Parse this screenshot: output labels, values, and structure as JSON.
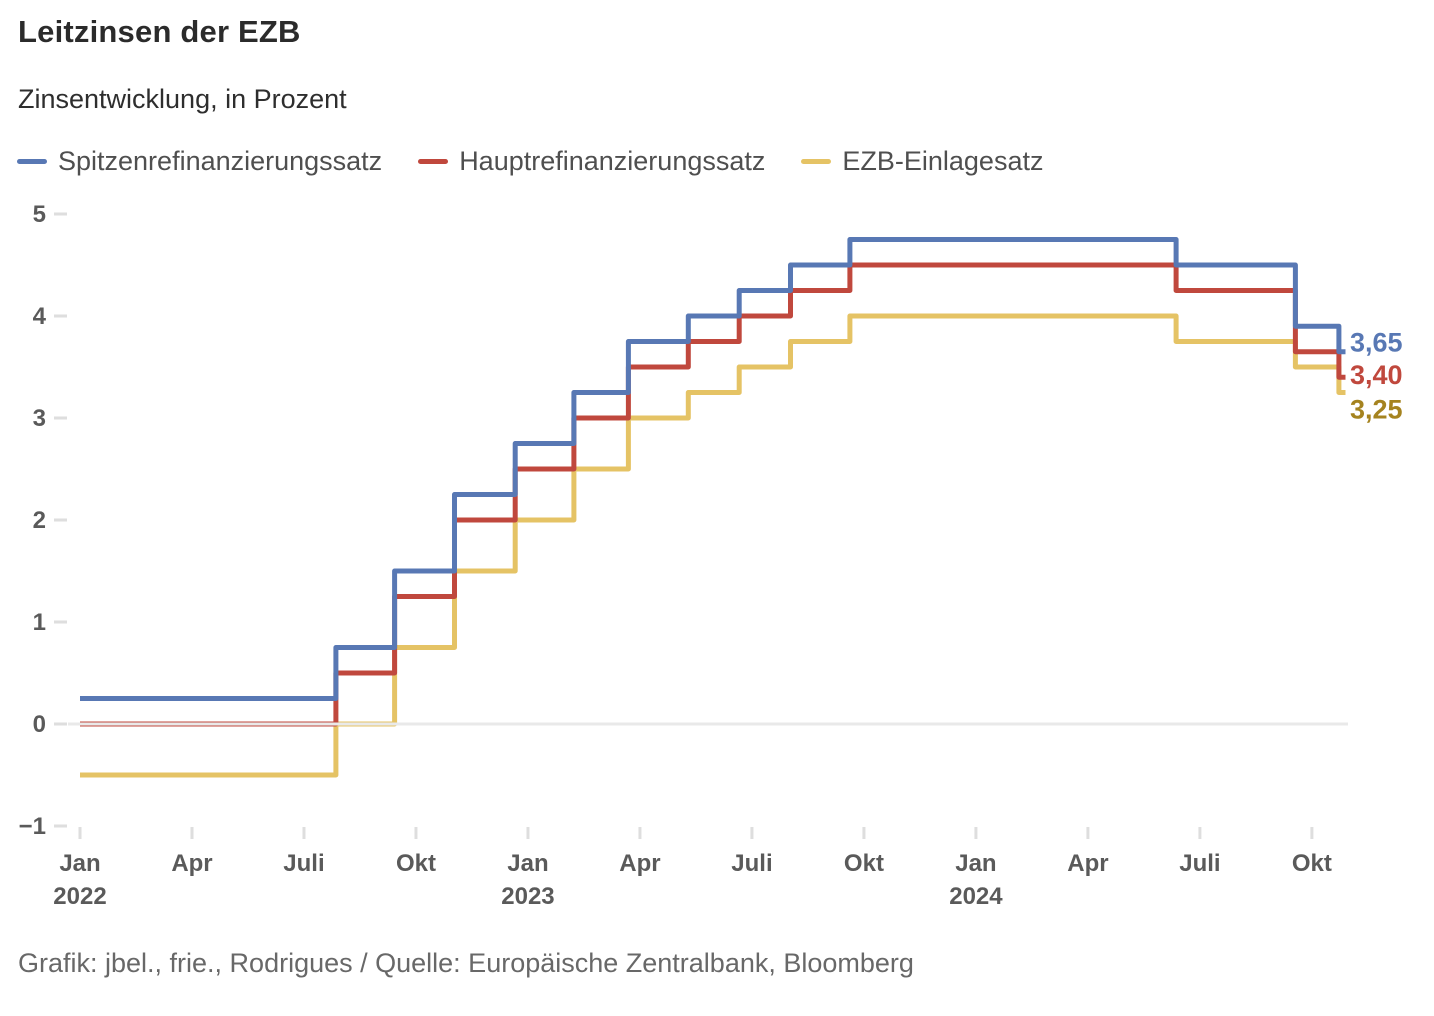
{
  "header": {
    "title": "Leitzinsen der EZB",
    "subtitle": "Zinsentwicklung, in Prozent"
  },
  "legend": {
    "items": [
      {
        "id": "spitzen",
        "label": "Spitzenrefinanzierungssatz",
        "color": "#5878b4"
      },
      {
        "id": "haupt",
        "label": "Hauptrefinanzierungssatz",
        "color": "#c0483d"
      },
      {
        "id": "einlage",
        "label": "EZB-Einlagesatz",
        "color": "#e5c365"
      }
    ]
  },
  "chart_data": {
    "type": "line",
    "subtype": "step-after",
    "title": "Leitzinsen der EZB",
    "subtitle": "Zinsentwicklung, in Prozent",
    "unit": "Prozent",
    "grid": "zero-line-only",
    "legend_position": "top",
    "x_axis": {
      "start": "2022-01",
      "end": "2024-11",
      "ticks": [
        {
          "m": 0,
          "label": "Jan",
          "year": "2022"
        },
        {
          "m": 3,
          "label": "Apr"
        },
        {
          "m": 6,
          "label": "Juli"
        },
        {
          "m": 9,
          "label": "Okt"
        },
        {
          "m": 12,
          "label": "Jan",
          "year": "2023"
        },
        {
          "m": 15,
          "label": "Apr"
        },
        {
          "m": 18,
          "label": "Juli"
        },
        {
          "m": 21,
          "label": "Okt"
        },
        {
          "m": 24,
          "label": "Jan",
          "year": "2024"
        },
        {
          "m": 27,
          "label": "Apr"
        },
        {
          "m": 30,
          "label": "Juli"
        },
        {
          "m": 33,
          "label": "Okt"
        }
      ]
    },
    "y_axis": {
      "min": -1,
      "max": 5,
      "ticks": [
        {
          "v": 5,
          "label": "5"
        },
        {
          "v": 4,
          "label": "4"
        },
        {
          "v": 3,
          "label": "3"
        },
        {
          "v": 2,
          "label": "2"
        },
        {
          "v": 1,
          "label": "1"
        },
        {
          "v": 0,
          "label": "0"
        },
        {
          "v": -1,
          "label": "−1"
        }
      ]
    },
    "series": [
      {
        "id": "spitzen",
        "name": "Spitzenrefinanzierungssatz",
        "color": "#5878b4",
        "end_label": {
          "text": "3,65",
          "color": "#5878b4"
        },
        "points": [
          [
            "2022-01-01",
            0.25
          ],
          [
            "2022-07-27",
            0.75
          ],
          [
            "2022-09-14",
            1.5
          ],
          [
            "2022-11-02",
            2.25
          ],
          [
            "2022-12-21",
            2.75
          ],
          [
            "2023-02-08",
            3.25
          ],
          [
            "2023-03-22",
            3.75
          ],
          [
            "2023-05-10",
            4.0
          ],
          [
            "2023-06-21",
            4.25
          ],
          [
            "2023-08-02",
            4.5
          ],
          [
            "2023-09-20",
            4.75
          ],
          [
            "2024-06-12",
            4.5
          ],
          [
            "2024-09-18",
            3.9
          ],
          [
            "2024-10-23",
            3.65
          ]
        ]
      },
      {
        "id": "haupt",
        "name": "Hauptrefinanzierungssatz",
        "color": "#c0483d",
        "end_label": {
          "text": "3,40",
          "color": "#c0483d"
        },
        "points": [
          [
            "2022-01-01",
            0.0
          ],
          [
            "2022-07-27",
            0.5
          ],
          [
            "2022-09-14",
            1.25
          ],
          [
            "2022-11-02",
            2.0
          ],
          [
            "2022-12-21",
            2.5
          ],
          [
            "2023-02-08",
            3.0
          ],
          [
            "2023-03-22",
            3.5
          ],
          [
            "2023-05-10",
            3.75
          ],
          [
            "2023-06-21",
            4.0
          ],
          [
            "2023-08-02",
            4.25
          ],
          [
            "2023-09-20",
            4.5
          ],
          [
            "2024-06-12",
            4.25
          ],
          [
            "2024-09-18",
            3.65
          ],
          [
            "2024-10-23",
            3.4
          ]
        ]
      },
      {
        "id": "einlage",
        "name": "EZB-Einlagesatz",
        "color": "#e5c365",
        "end_label": {
          "text": "3,25",
          "color": "#a5831f"
        },
        "points": [
          [
            "2022-01-01",
            -0.5
          ],
          [
            "2022-07-27",
            0.0
          ],
          [
            "2022-09-14",
            0.75
          ],
          [
            "2022-11-02",
            1.5
          ],
          [
            "2022-12-21",
            2.0
          ],
          [
            "2023-02-08",
            2.5
          ],
          [
            "2023-03-22",
            3.0
          ],
          [
            "2023-05-10",
            3.25
          ],
          [
            "2023-06-21",
            3.5
          ],
          [
            "2023-08-02",
            3.75
          ],
          [
            "2023-09-20",
            4.0
          ],
          [
            "2024-06-12",
            3.75
          ],
          [
            "2024-09-18",
            3.5
          ],
          [
            "2024-10-23",
            3.25
          ]
        ]
      }
    ]
  },
  "footer": {
    "credit": "Grafik: jbel., frie., Rodrigues / Quelle: Europäische Zentralbank, Bloomberg"
  }
}
